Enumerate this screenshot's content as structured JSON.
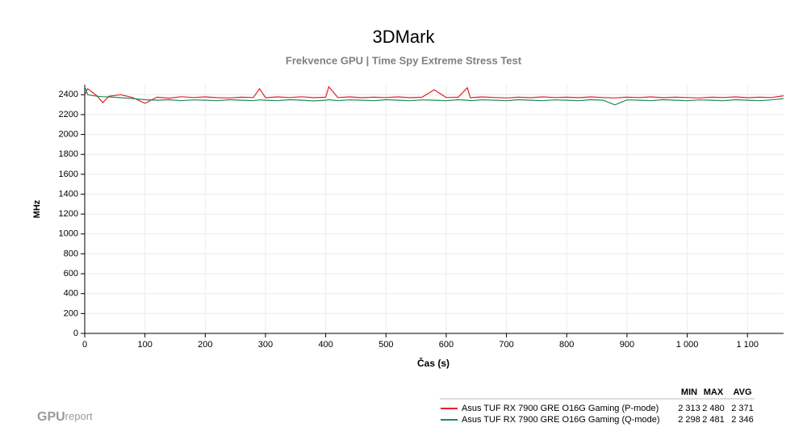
{
  "chart_data": {
    "type": "line",
    "title": "3DMark",
    "subtitle": "Frekvence GPU | Time Spy Extreme Stress Test",
    "x_label": "Čas (s)",
    "y_label": "MHz",
    "x": [
      0,
      5,
      20,
      30,
      40,
      60,
      80,
      100,
      120,
      140,
      160,
      180,
      200,
      220,
      240,
      260,
      280,
      290,
      300,
      320,
      340,
      360,
      380,
      400,
      405,
      420,
      440,
      460,
      480,
      500,
      520,
      540,
      560,
      580,
      600,
      620,
      635,
      640,
      660,
      680,
      700,
      720,
      740,
      760,
      780,
      800,
      820,
      840,
      860,
      880,
      900,
      920,
      940,
      960,
      980,
      1000,
      1020,
      1040,
      1060,
      1080,
      1100,
      1120,
      1140,
      1160
    ],
    "series": [
      {
        "name": "Asus TUF RX 7900 GRE O16G Gaming (P-mode)",
        "color": "#e3202a",
        "stats": [
          "2 313",
          "2 480",
          "2 371"
        ],
        "values": [
          2400,
          2460,
          2390,
          2320,
          2385,
          2400,
          2370,
          2313,
          2375,
          2365,
          2380,
          2372,
          2378,
          2370,
          2368,
          2375,
          2372,
          2460,
          2370,
          2378,
          2372,
          2380,
          2370,
          2375,
          2480,
          2372,
          2378,
          2370,
          2375,
          2372,
          2378,
          2370,
          2375,
          2450,
          2372,
          2375,
          2470,
          2370,
          2378,
          2372,
          2368,
          2375,
          2370,
          2378,
          2372,
          2375,
          2370,
          2378,
          2372,
          2368,
          2375,
          2372,
          2378,
          2370,
          2375,
          2372,
          2368,
          2375,
          2372,
          2378,
          2370,
          2375,
          2372,
          2390
        ]
      },
      {
        "name": "Asus TUF RX 7900 GRE O16G Gaming (Q-mode)",
        "color": "#1e8a5a",
        "stats": [
          "2 298",
          "2 481",
          "2 346"
        ],
        "values": [
          2481,
          2400,
          2385,
          2380,
          2378,
          2370,
          2360,
          2350,
          2345,
          2350,
          2340,
          2348,
          2345,
          2340,
          2350,
          2345,
          2340,
          2348,
          2345,
          2340,
          2350,
          2345,
          2338,
          2345,
          2350,
          2340,
          2348,
          2345,
          2340,
          2350,
          2345,
          2340,
          2348,
          2345,
          2340,
          2350,
          2345,
          2340,
          2348,
          2345,
          2340,
          2350,
          2345,
          2340,
          2348,
          2345,
          2340,
          2350,
          2345,
          2298,
          2348,
          2345,
          2340,
          2350,
          2345,
          2340,
          2348,
          2345,
          2340,
          2350,
          2345,
          2340,
          2348,
          2360
        ]
      }
    ],
    "stats_headers": [
      "MIN",
      "MAX",
      "AVG"
    ],
    "xlim": [
      0,
      1160
    ],
    "xticks": [
      0,
      100,
      200,
      300,
      400,
      500,
      600,
      700,
      800,
      900,
      {
        "value": 1000,
        "label": "1 000"
      },
      {
        "value": 1100,
        "label": "1 100"
      }
    ],
    "ylim": [
      0,
      2500
    ],
    "yticks": [
      0,
      200,
      400,
      600,
      800,
      1000,
      1200,
      1400,
      1600,
      1800,
      2000,
      2200,
      2400
    ],
    "grid": true
  },
  "logo": {
    "bold": "GPU",
    "rest": "report"
  }
}
